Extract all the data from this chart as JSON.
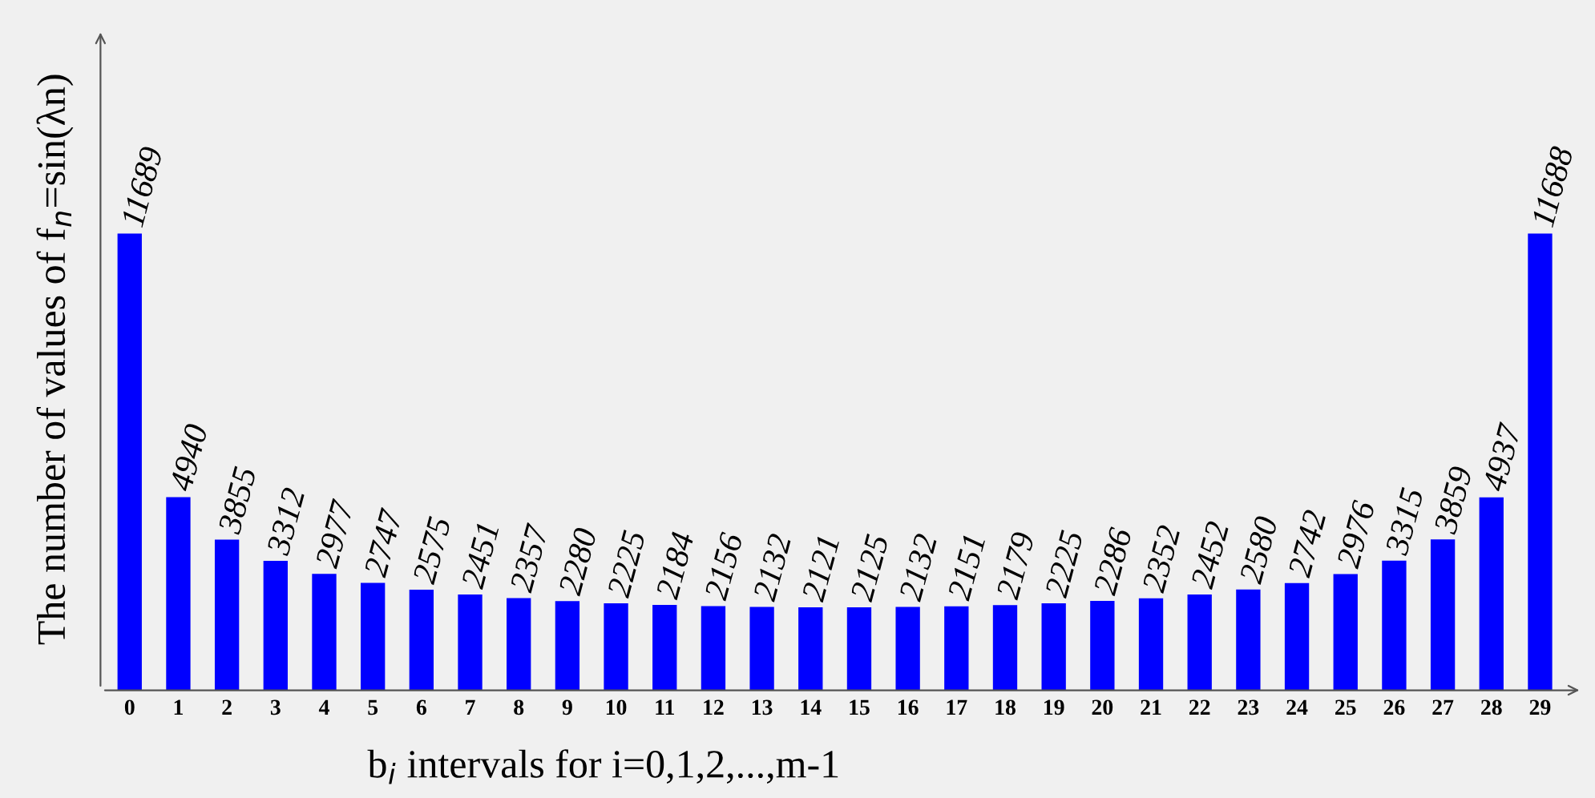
{
  "chart_data": {
    "type": "bar",
    "xlabel": "b$_{i}$ intervals for i=0,1,2,...,m-1",
    "ylabel": "The number of values of f$_{n}$=sin(λn)",
    "categories": [
      "0",
      "1",
      "2",
      "3",
      "4",
      "5",
      "6",
      "7",
      "8",
      "9",
      "10",
      "11",
      "12",
      "13",
      "14",
      "15",
      "16",
      "17",
      "18",
      "19",
      "20",
      "21",
      "22",
      "23",
      "24",
      "25",
      "26",
      "27",
      "28",
      "29"
    ],
    "values": [
      11689,
      4940,
      3855,
      3312,
      2977,
      2747,
      2575,
      2451,
      2357,
      2280,
      2225,
      2184,
      2156,
      2132,
      2121,
      2125,
      2132,
      2151,
      2179,
      2225,
      2286,
      2352,
      2452,
      2580,
      2742,
      2976,
      3315,
      3859,
      4937,
      11688
    ],
    "color": "#0000ff",
    "data_labels": true,
    "grid": false,
    "legend": false
  }
}
